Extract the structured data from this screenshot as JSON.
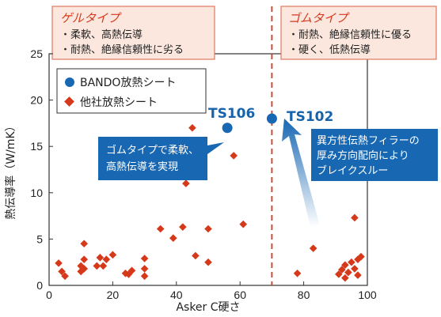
{
  "chart_data": {
    "type": "scatter",
    "xlabel": "Asker C硬さ",
    "ylabel": "熱伝導率（W/mK）",
    "xlim": [
      0,
      100
    ],
    "ylim": [
      0,
      25
    ],
    "xticks": [
      "0",
      "20",
      "40",
      "60",
      "80",
      "100"
    ],
    "yticks": [
      "0",
      "5",
      "10",
      "15",
      "20",
      "25"
    ],
    "divider_x": 70,
    "colors": {
      "bando": "#1767b2",
      "others": "#d6381a",
      "box_border": "#e07a5f",
      "box_fill": "#fbe7de",
      "callout": "#1767b2",
      "divider": "#d6381a"
    },
    "series": [
      {
        "name": "BANDO放熱シート",
        "marker": "circle",
        "points": [
          {
            "x": 56,
            "y": 17,
            "label": "TS106"
          },
          {
            "x": 70,
            "y": 18,
            "label": "TS102"
          }
        ]
      },
      {
        "name": "他社放熱シート",
        "marker": "diamond",
        "points": [
          {
            "x": 3,
            "y": 2.4
          },
          {
            "x": 4,
            "y": 1.5
          },
          {
            "x": 5,
            "y": 1
          },
          {
            "x": 10,
            "y": 2.1
          },
          {
            "x": 10,
            "y": 1.5
          },
          {
            "x": 11,
            "y": 2.8
          },
          {
            "x": 11,
            "y": 4.5
          },
          {
            "x": 11,
            "y": 1.8
          },
          {
            "x": 15,
            "y": 2.1
          },
          {
            "x": 16,
            "y": 3
          },
          {
            "x": 17,
            "y": 2.1
          },
          {
            "x": 18,
            "y": 2.8
          },
          {
            "x": 20,
            "y": 3.3
          },
          {
            "x": 24,
            "y": 1.3
          },
          {
            "x": 25,
            "y": 1.2
          },
          {
            "x": 26,
            "y": 1.6
          },
          {
            "x": 30,
            "y": 2.9
          },
          {
            "x": 30,
            "y": 1.8
          },
          {
            "x": 30,
            "y": 1
          },
          {
            "x": 35,
            "y": 6.1
          },
          {
            "x": 39,
            "y": 5.1
          },
          {
            "x": 42,
            "y": 6.3
          },
          {
            "x": 43,
            "y": 11
          },
          {
            "x": 45,
            "y": 17
          },
          {
            "x": 46,
            "y": 3.2
          },
          {
            "x": 50,
            "y": 2.5
          },
          {
            "x": 50,
            "y": 6.1
          },
          {
            "x": 58,
            "y": 14
          },
          {
            "x": 61,
            "y": 6.6
          },
          {
            "x": 78,
            "y": 1.3
          },
          {
            "x": 83,
            "y": 4
          },
          {
            "x": 91,
            "y": 1.2
          },
          {
            "x": 92,
            "y": 1.7
          },
          {
            "x": 93,
            "y": 2.2
          },
          {
            "x": 93,
            "y": 0.8
          },
          {
            "x": 94,
            "y": 1.4
          },
          {
            "x": 95,
            "y": 2.5
          },
          {
            "x": 96,
            "y": 1.8
          },
          {
            "x": 96,
            "y": 7.3
          },
          {
            "x": 97,
            "y": 1.1
          },
          {
            "x": 97,
            "y": 2.8
          },
          {
            "x": 98,
            "y": 3.1
          }
        ]
      }
    ],
    "annotations": {
      "gel_box": {
        "title": "ゲルタイプ",
        "lines": [
          "・柔軟、高熱伝導",
          "・耐熱、絶縁信頼性に劣る"
        ]
      },
      "rubber_box": {
        "title": "ゴムタイプ",
        "lines": [
          "・耐熱、絶縁信頼性に優る",
          "・硬く、低熱伝導"
        ]
      },
      "callout_left": {
        "lines": [
          "ゴムタイプで柔軟、",
          "高熱伝導を実現"
        ]
      },
      "callout_right": {
        "lines": [
          "異方性伝熱フィラーの",
          "厚み方向配向により",
          "ブレイクスルー"
        ]
      }
    }
  }
}
